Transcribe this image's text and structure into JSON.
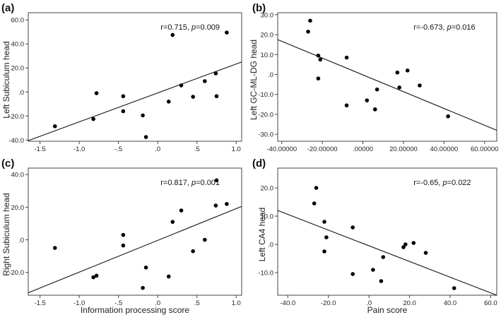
{
  "chart_data": [
    {
      "type": "scatter",
      "panel_label": "(a)",
      "xlabel": "",
      "ylabel": "Left Subiculum head",
      "xlim": [
        -1.65,
        1.07
      ],
      "ylim": [
        -41,
        66
      ],
      "xticks": [
        -1.5,
        -1.0,
        -0.5,
        0.0,
        0.5,
        1.0
      ],
      "xtick_labels": [
        "-1.5",
        "-1.0",
        "-.5",
        ".0",
        ".5",
        "1.0"
      ],
      "yticks": [
        -40,
        -20,
        0,
        20,
        40,
        60
      ],
      "ytick_labels": [
        "-40.0",
        "-20.0",
        ".0",
        "20.0",
        "40.0",
        "60.0"
      ],
      "annotation": {
        "prefix": "r=0.715, ",
        "p_label": "p",
        "suffix": "=0.009"
      },
      "x": [
        -1.31,
        -0.82,
        -0.78,
        -0.44,
        -0.44,
        -0.19,
        -0.15,
        0.14,
        0.19,
        0.3,
        0.45,
        0.6,
        0.74,
        0.75,
        0.88
      ],
      "y": [
        -28.5,
        -22.5,
        -1,
        -3.5,
        -16,
        -19.5,
        -37.5,
        -8,
        47.5,
        5.5,
        -4,
        9,
        15.5,
        -3.5,
        49.5
      ],
      "fit_line": {
        "x": [
          -1.65,
          1.07
        ],
        "y": [
          -40.5,
          25
        ]
      }
    },
    {
      "type": "scatter",
      "panel_label": "(b)",
      "xlabel": "",
      "ylabel": "Left GC-ML-DG head",
      "xlim": [
        -42,
        66
      ],
      "ylim": [
        -33.5,
        31
      ],
      "xticks": [
        -40,
        -20,
        0,
        20,
        40,
        60
      ],
      "xtick_labels": [
        "-40.00000",
        "-20.00000",
        ".00000",
        "20.00000",
        "40.00000",
        "60.00000"
      ],
      "yticks": [
        -30,
        -20,
        -10,
        0,
        10,
        20,
        30
      ],
      "ytick_labels": [
        "-30.0",
        "-20.0",
        "-10.0",
        ".0",
        "10.0",
        "20.0",
        "30.0"
      ],
      "annotation": {
        "prefix": "r=-0.673, ",
        "p_label": "p",
        "suffix": "=0.016"
      },
      "x": [
        -26,
        -27,
        -22,
        -21,
        -22,
        -8,
        -8,
        2,
        6,
        7,
        17,
        18,
        22,
        28,
        42
      ],
      "y": [
        27,
        21.5,
        9.5,
        7.5,
        -2,
        8.5,
        -15.5,
        -13,
        -17.5,
        -7.5,
        1,
        -6.5,
        2,
        -5.5,
        -21
      ],
      "fit_line": {
        "x": [
          -42,
          66
        ],
        "y": [
          17.5,
          -28
        ]
      }
    },
    {
      "type": "scatter",
      "panel_label": "(c)",
      "xlabel": "Information processing score",
      "ylabel": "Right Subiculum head",
      "xlim": [
        -1.65,
        1.07
      ],
      "ylim": [
        -34,
        44
      ],
      "xticks": [
        -1.5,
        -1.0,
        -0.5,
        0.0,
        0.5,
        1.0
      ],
      "xtick_labels": [
        "-1.5",
        "-1.0",
        "-.5",
        ".0",
        ".5",
        "1.0"
      ],
      "yticks": [
        -20,
        0,
        20,
        40
      ],
      "ytick_labels": [
        "-20.0",
        ".0",
        "20.0",
        "40.0"
      ],
      "annotation": {
        "prefix": "r=0.817, ",
        "p_label": "p",
        "suffix": "=0.001"
      },
      "x": [
        -1.31,
        -0.82,
        -0.78,
        -0.44,
        -0.44,
        -0.19,
        -0.15,
        0.14,
        0.19,
        0.3,
        0.45,
        0.6,
        0.74,
        0.75,
        0.88
      ],
      "y": [
        -5,
        -23,
        -22,
        3,
        -3.5,
        -29.5,
        -17,
        -22.5,
        11,
        18,
        -7,
        0,
        21,
        36.5,
        22
      ],
      "fit_line": {
        "x": [
          -1.65,
          1.07
        ],
        "y": [
          -32.5,
          20.5
        ]
      }
    },
    {
      "type": "scatter",
      "panel_label": "(d)",
      "xlabel": "Pain score",
      "ylabel": "Left CA4 head",
      "xlim": [
        -45,
        63
      ],
      "ylim": [
        -18,
        27
      ],
      "xticks": [
        -40,
        -20,
        0,
        20,
        40,
        60
      ],
      "xtick_labels": [
        "-40.0",
        "-20.0",
        ".0",
        "20.0",
        "40.0",
        "60.0"
      ],
      "yticks": [
        -10,
        0,
        10,
        20
      ],
      "ytick_labels": [
        "-10.0",
        ".0",
        "10.0",
        "20.0"
      ],
      "annotation": {
        "prefix": "r=-0.65, ",
        "p_label": "p",
        "suffix": "=0.022"
      },
      "x": [
        -26,
        -27,
        -22,
        -21,
        -22,
        -8,
        -8,
        2,
        6,
        7,
        17,
        18,
        22,
        28,
        42
      ],
      "y": [
        20,
        14.5,
        8,
        2.5,
        -2.5,
        6,
        -10.5,
        -9,
        -13,
        -4.5,
        -1,
        0,
        0.5,
        -3,
        -15.5
      ],
      "fit_line": {
        "x": [
          -45,
          63
        ],
        "y": [
          12,
          -18
        ]
      }
    }
  ]
}
